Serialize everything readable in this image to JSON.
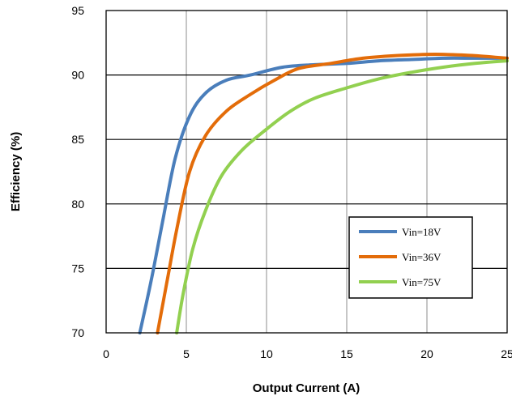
{
  "chart_data": {
    "type": "line",
    "xlabel": "Output Current (A)",
    "ylabel": "Efficiency (%)",
    "xlim": [
      0,
      25
    ],
    "ylim": [
      70,
      95
    ],
    "xticks": [
      "0",
      "5",
      "10",
      "15",
      "20",
      "25"
    ],
    "yticks": [
      "70",
      "75",
      "80",
      "85",
      "90",
      "95"
    ],
    "grid": true,
    "legend_position": "lower-right",
    "series": [
      {
        "name": "Vin=18V",
        "color": "#4a7ebb",
        "points": [
          [
            2.1,
            70
          ],
          [
            2.8,
            74
          ],
          [
            3.5,
            78.5
          ],
          [
            4.3,
            83.5
          ],
          [
            5.2,
            86.8
          ],
          [
            6.2,
            88.6
          ],
          [
            7.5,
            89.6
          ],
          [
            9,
            90
          ],
          [
            11,
            90.6
          ],
          [
            13,
            90.8
          ],
          [
            15,
            90.9
          ],
          [
            17,
            91.1
          ],
          [
            19,
            91.2
          ],
          [
            21,
            91.3
          ],
          [
            23,
            91.3
          ],
          [
            25,
            91.3
          ]
        ]
      },
      {
        "name": "Vin=36V",
        "color": "#e36c09",
        "points": [
          [
            3.2,
            70
          ],
          [
            3.8,
            74
          ],
          [
            4.4,
            78
          ],
          [
            5.2,
            82.5
          ],
          [
            6.2,
            85.3
          ],
          [
            7.5,
            87.2
          ],
          [
            9,
            88.5
          ],
          [
            10.5,
            89.6
          ],
          [
            12,
            90.5
          ],
          [
            14,
            90.9
          ],
          [
            16,
            91.3
          ],
          [
            18,
            91.5
          ],
          [
            20,
            91.6
          ],
          [
            21,
            91.6
          ],
          [
            23,
            91.5
          ],
          [
            25,
            91.3
          ]
        ]
      },
      {
        "name": "Vin=75V",
        "color": "#92d050",
        "points": [
          [
            4.4,
            70
          ],
          [
            4.8,
            73
          ],
          [
            5.4,
            76.5
          ],
          [
            6.2,
            79.5
          ],
          [
            7.2,
            82.2
          ],
          [
            8.5,
            84.2
          ],
          [
            10,
            85.8
          ],
          [
            11.5,
            87.2
          ],
          [
            13,
            88.2
          ],
          [
            15,
            89
          ],
          [
            17,
            89.7
          ],
          [
            19,
            90.2
          ],
          [
            21,
            90.6
          ],
          [
            23,
            90.9
          ],
          [
            25,
            91.1
          ]
        ]
      }
    ]
  }
}
